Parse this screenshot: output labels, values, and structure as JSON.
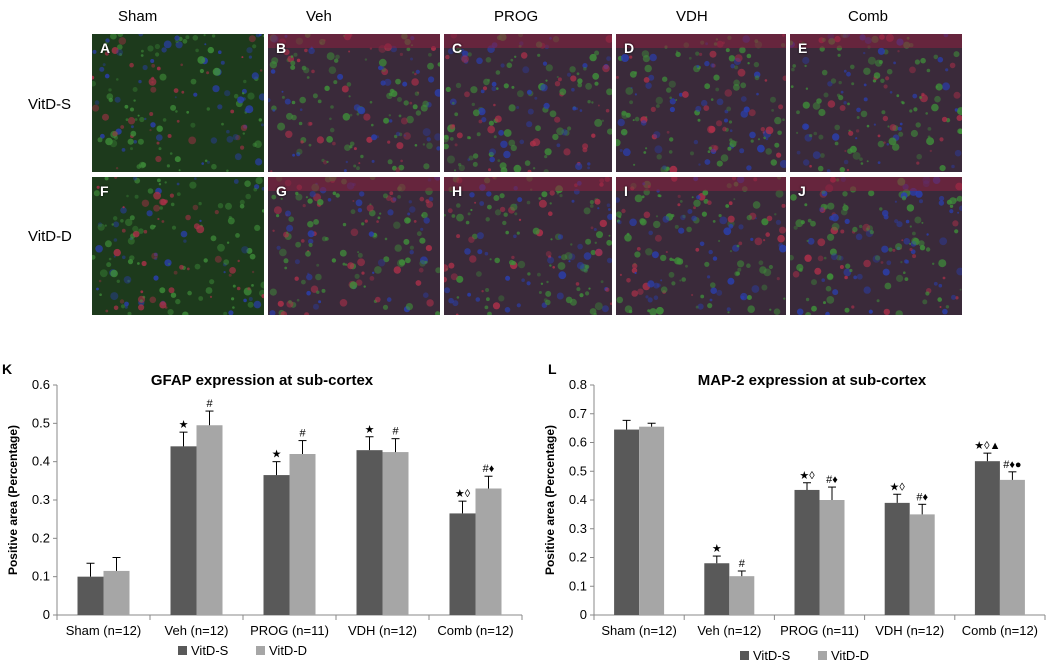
{
  "micrographs": {
    "columns": [
      "Sham",
      "Veh",
      "PROG",
      "VDH",
      "Comb"
    ],
    "rows": [
      "VitD-S",
      "VitD-D"
    ],
    "panel_letters": [
      "A",
      "B",
      "C",
      "D",
      "E",
      "F",
      "G",
      "H",
      "I",
      "J"
    ]
  },
  "chart_letters": [
    "K",
    "L"
  ],
  "colors": {
    "vitd_s": "#595959",
    "vitd_d": "#a6a6a6"
  },
  "chart_data": [
    {
      "type": "bar",
      "title": "GFAP expression at sub-cortex",
      "xlabel": "",
      "ylabel": "Positive area (Percentage)",
      "ylim": [
        0,
        0.6
      ],
      "yticks": [
        "0",
        "0.1",
        "0.2",
        "0.3",
        "0.4",
        "0.5",
        "0.6"
      ],
      "grid": false,
      "legend": "bottom",
      "categories": [
        "Sham (n=12)",
        "Veh (n=12)",
        "PROG (n=11)",
        "VDH (n=12)",
        "Comb (n=12)"
      ],
      "series": [
        {
          "name": "VitD-S",
          "values": [
            0.1,
            0.44,
            0.365,
            0.43,
            0.265
          ],
          "errors": [
            0.035,
            0.037,
            0.035,
            0.035,
            0.032
          ],
          "annotations": [
            "",
            "★",
            "★",
            "★",
            "★◊"
          ]
        },
        {
          "name": "VitD-D",
          "values": [
            0.115,
            0.495,
            0.42,
            0.425,
            0.33
          ],
          "errors": [
            0.035,
            0.037,
            0.035,
            0.035,
            0.032
          ],
          "annotations": [
            "",
            "#",
            "#",
            "#",
            "#♦"
          ]
        }
      ]
    },
    {
      "type": "bar",
      "title": "MAP-2 expression at sub-cortex",
      "xlabel": "",
      "ylabel": "Positive area (Percentage)",
      "ylim": [
        0,
        0.8
      ],
      "yticks": [
        "0",
        "0.1",
        "0.2",
        "0.3",
        "0.4",
        "0.5",
        "0.6",
        "0.7",
        "0.8"
      ],
      "grid": false,
      "legend": "bottom",
      "categories": [
        "Sham (n=12)",
        "Veh (n=12)",
        "PROG (n=11)",
        "VDH (n=12)",
        "Comb (n=12)"
      ],
      "series": [
        {
          "name": "VitD-S",
          "values": [
            0.645,
            0.18,
            0.435,
            0.39,
            0.535
          ],
          "errors": [
            0.032,
            0.025,
            0.025,
            0.03,
            0.028
          ],
          "annotations": [
            "",
            "★",
            "★◊",
            "★◊",
            "★◊▲"
          ]
        },
        {
          "name": "VitD-D",
          "values": [
            0.655,
            0.135,
            0.4,
            0.35,
            0.47
          ],
          "errors": [
            0.012,
            0.018,
            0.045,
            0.035,
            0.028
          ],
          "annotations": [
            "",
            "#",
            "#♦",
            "#♦",
            "#♦●"
          ]
        }
      ]
    }
  ]
}
